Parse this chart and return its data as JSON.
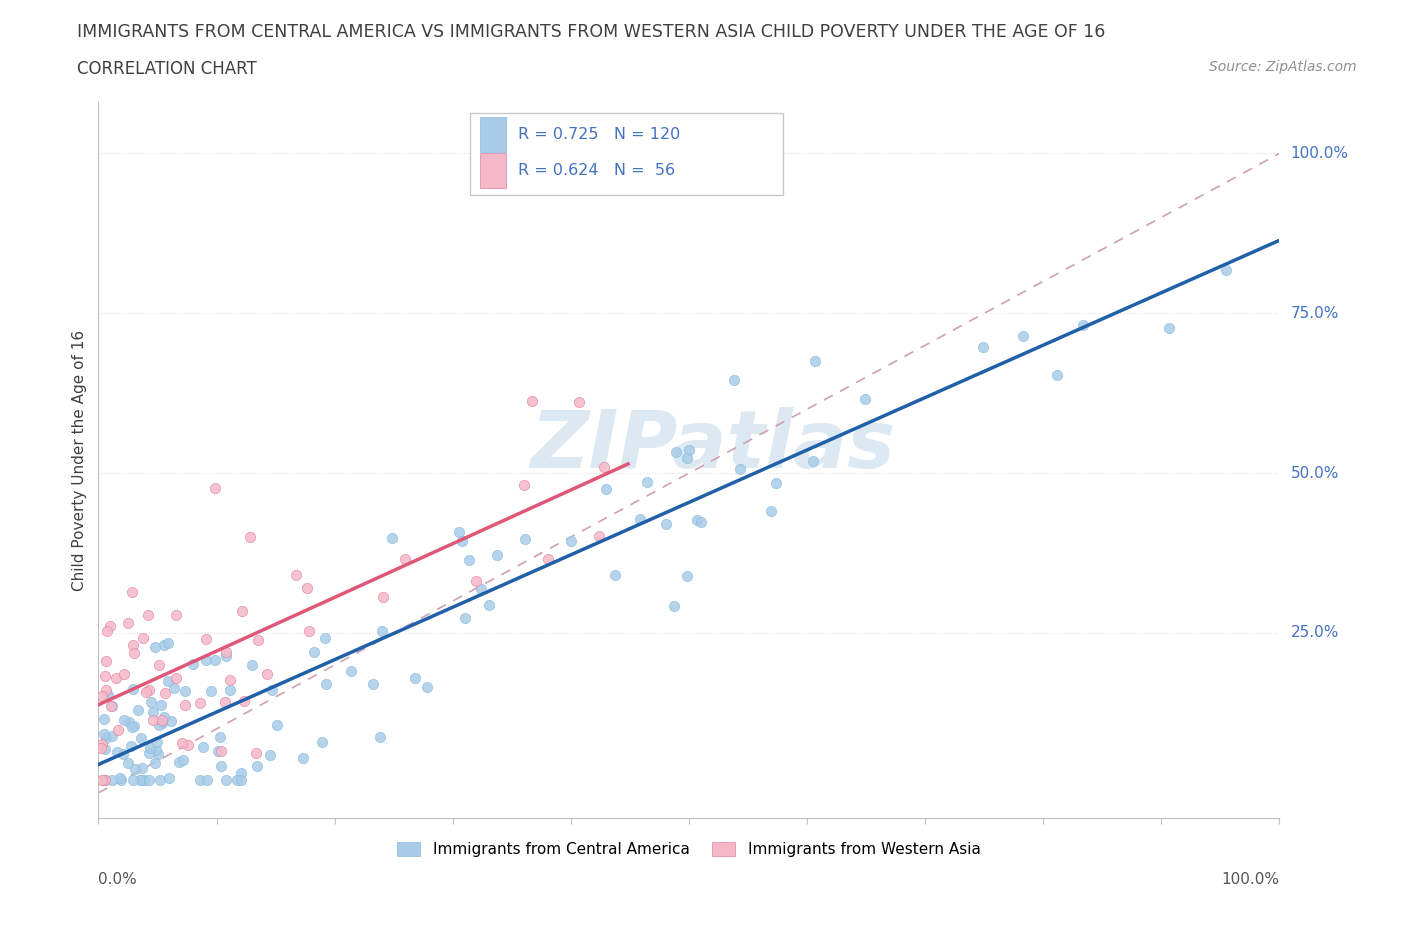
{
  "title": "IMMIGRANTS FROM CENTRAL AMERICA VS IMMIGRANTS FROM WESTERN ASIA CHILD POVERTY UNDER THE AGE OF 16",
  "subtitle": "CORRELATION CHART",
  "source": "Source: ZipAtlas.com",
  "ylabel": "Child Poverty Under the Age of 16",
  "legend_label_blue": "Immigrants from Central America",
  "legend_label_pink": "Immigrants from Western Asia",
  "blue_color": "#a8cce8",
  "pink_color": "#f5b8c8",
  "blue_line_color": "#2060a8",
  "pink_line_color": "#e05878",
  "diagonal_color": "#d0a0b0",
  "watermark": "ZIPatlas",
  "watermark_color": "#dce8f2",
  "background_color": "#ffffff",
  "legend_text_color": "#4472c4",
  "right_label_color": "#4472c4",
  "title_color": "#404040",
  "source_color": "#909090",
  "grid_color": "#e0e0e0",
  "spine_color": "#c0c0c0"
}
